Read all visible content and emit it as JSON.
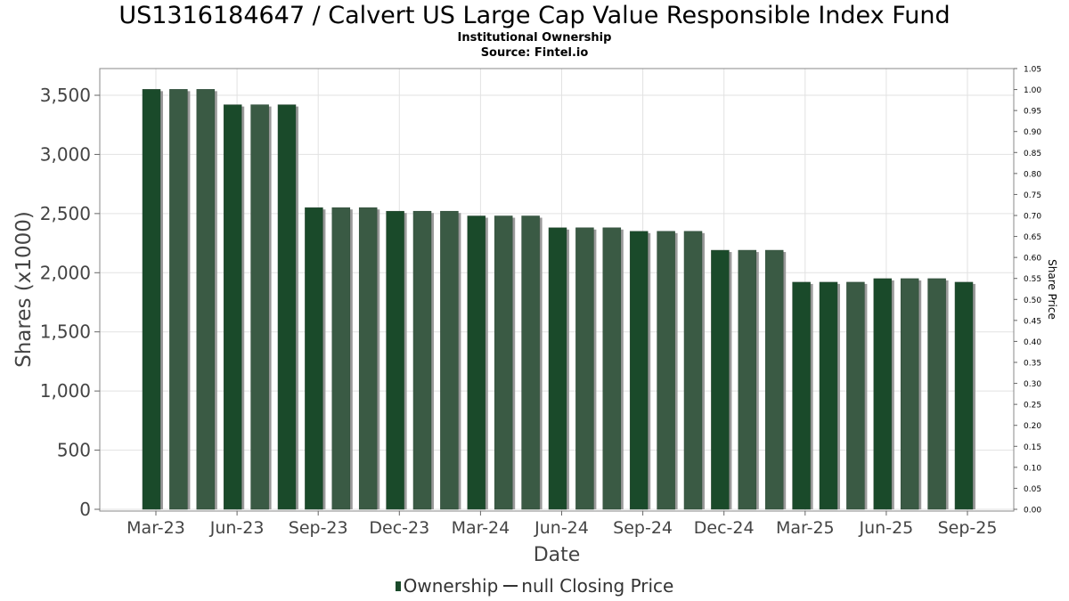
{
  "chart_data": {
    "type": "bar",
    "title": "US1316184647 / Calvert US Large Cap Value Responsible Index Fund",
    "subtitle": "Institutional Ownership",
    "source": "Source: Fintel.io",
    "xlabel": "Date",
    "ylabel": "Shares (x1000)",
    "y2label": "Share Price",
    "ylim": [
      0,
      3700
    ],
    "y2lim": [
      0,
      1.05
    ],
    "yticks": [
      "0",
      "500",
      "1,000",
      "1,500",
      "2,000",
      "2,500",
      "3,000",
      "3,500"
    ],
    "y2ticks": [
      "0.00",
      "0.05",
      "0.10",
      "0.15",
      "0.20",
      "0.25",
      "0.30",
      "0.35",
      "0.40",
      "0.45",
      "0.50",
      "0.55",
      "0.60",
      "0.65",
      "0.70",
      "0.75",
      "0.80",
      "0.85",
      "0.90",
      "0.95",
      "1.00",
      "1.05"
    ],
    "xticks": [
      "Mar-23",
      "Jun-23",
      "Sep-23",
      "Dec-23",
      "Mar-24",
      "Jun-24",
      "Sep-24",
      "Dec-24",
      "Mar-25",
      "Jun-25",
      "Sep-25"
    ],
    "grid": true,
    "legend_position": "bottom",
    "series": [
      {
        "name": "Ownership",
        "color": "#1a4a2a",
        "values": [
          3550,
          3550,
          3550,
          3420,
          3420,
          3420,
          2550,
          2550,
          2550,
          2520,
          2520,
          2520,
          2480,
          2480,
          2480,
          2380,
          2380,
          2380,
          2350,
          2350,
          2350,
          2190,
          2190,
          2190,
          1920,
          1920,
          1920,
          1950,
          1950,
          1950,
          1920
        ]
      }
    ],
    "legend": {
      "ownership_label": "Ownership",
      "price_label": "null Closing Price"
    }
  }
}
